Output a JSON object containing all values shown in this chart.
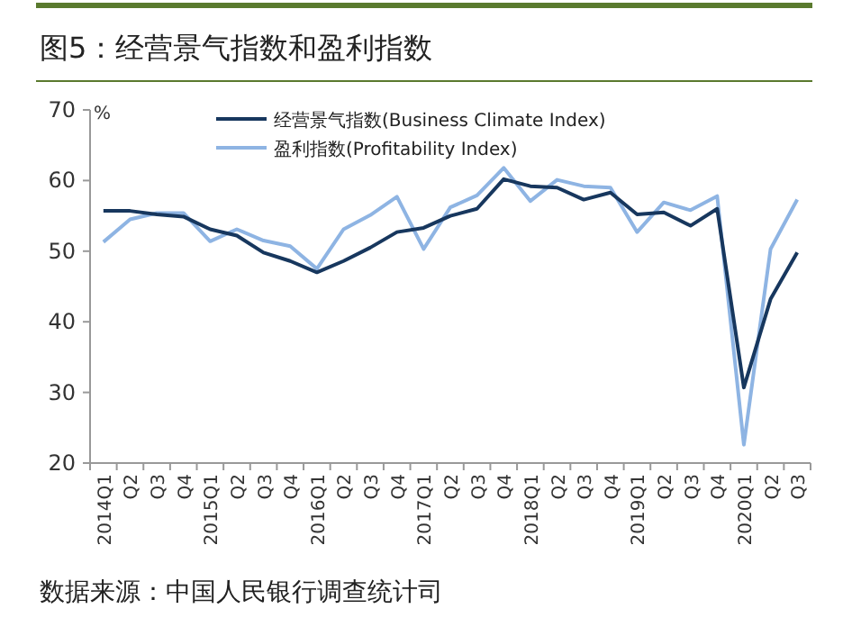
{
  "chart_data": {
    "type": "line",
    "title": "图5：经营景气指数和盈利指数",
    "ylabel": "%",
    "annotations": [
      "数据来源：中国人民银行调查统计司"
    ],
    "categories": [
      "2014Q1",
      "Q2",
      "Q3",
      "Q4",
      "2015Q1",
      "Q2",
      "Q3",
      "Q4",
      "2016Q1",
      "Q2",
      "Q3",
      "Q4",
      "2017Q1",
      "Q2",
      "Q3",
      "Q4",
      "2018Q1",
      "Q2",
      "Q3",
      "Q4",
      "2019Q1",
      "Q2",
      "Q3",
      "Q4",
      "2020Q1",
      "Q2",
      "Q3"
    ],
    "series": [
      {
        "name": "经营景气指数(Business Climate Index)",
        "color": "#17375e",
        "values": [
          55.7,
          55.7,
          55.2,
          54.9,
          53.1,
          52.2,
          49.8,
          48.6,
          47.0,
          48.6,
          50.5,
          52.7,
          53.3,
          55.0,
          56.0,
          60.2,
          59.2,
          59.0,
          57.3,
          58.3,
          55.2,
          55.5,
          53.6,
          56.0,
          30.7,
          43.2,
          49.8
        ]
      },
      {
        "name": "盈利指数(Profitability Index)",
        "color": "#8eb4e3",
        "values": [
          51.3,
          54.5,
          55.4,
          55.4,
          51.4,
          53.1,
          51.5,
          50.7,
          47.5,
          53.1,
          55.1,
          57.7,
          50.3,
          56.2,
          57.9,
          61.8,
          57.1,
          60.1,
          59.2,
          59.0,
          52.7,
          56.9,
          55.8,
          57.8,
          22.6,
          50.3,
          57.3
        ]
      }
    ],
    "ylim": [
      20,
      70
    ],
    "yticks": [
      20,
      30,
      40,
      50,
      60,
      70
    ],
    "grid": false,
    "legend": "top",
    "marker": "none",
    "line_style": "solid"
  }
}
